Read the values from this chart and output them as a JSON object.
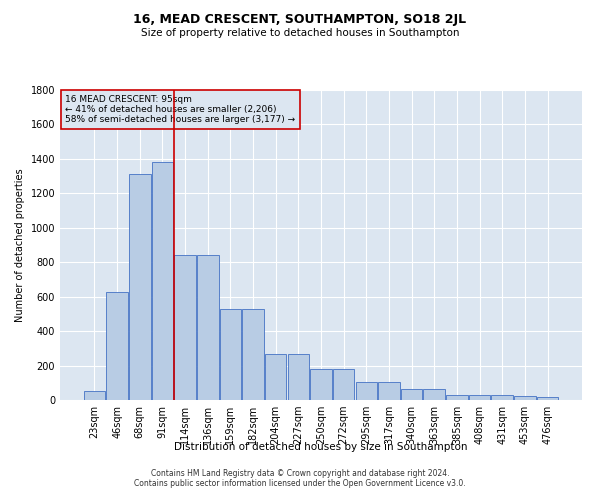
{
  "title": "16, MEAD CRESCENT, SOUTHAMPTON, SO18 2JL",
  "subtitle": "Size of property relative to detached houses in Southampton",
  "xlabel": "Distribution of detached houses by size in Southampton",
  "ylabel": "Number of detached properties",
  "footer_line1": "Contains HM Land Registry data © Crown copyright and database right 2024.",
  "footer_line2": "Contains public sector information licensed under the Open Government Licence v3.0.",
  "annotation_line1": "16 MEAD CRESCENT: 95sqm",
  "annotation_line2": "← 41% of detached houses are smaller (2,206)",
  "annotation_line3": "58% of semi-detached houses are larger (3,177) →",
  "bar_labels": [
    "23sqm",
    "46sqm",
    "68sqm",
    "91sqm",
    "114sqm",
    "136sqm",
    "159sqm",
    "182sqm",
    "204sqm",
    "227sqm",
    "250sqm",
    "272sqm",
    "295sqm",
    "317sqm",
    "340sqm",
    "363sqm",
    "385sqm",
    "408sqm",
    "431sqm",
    "453sqm",
    "476sqm"
  ],
  "bar_values": [
    50,
    630,
    1310,
    1380,
    840,
    840,
    530,
    530,
    270,
    270,
    180,
    180,
    105,
    105,
    65,
    65,
    30,
    30,
    30,
    25,
    20
  ],
  "bar_color": "#b8cce4",
  "bar_edge_color": "#4472c4",
  "marker_color": "#cc0000",
  "ylim": [
    0,
    1800
  ],
  "yticks": [
    0,
    200,
    400,
    600,
    800,
    1000,
    1200,
    1400,
    1600,
    1800
  ],
  "annotation_box_color": "#cc0000",
  "plot_bg_color": "#dce6f1",
  "title_fontsize": 9,
  "subtitle_fontsize": 7.5,
  "xlabel_fontsize": 7.5,
  "ylabel_fontsize": 7,
  "tick_fontsize": 7,
  "annot_fontsize": 6.5,
  "footer_fontsize": 5.5
}
